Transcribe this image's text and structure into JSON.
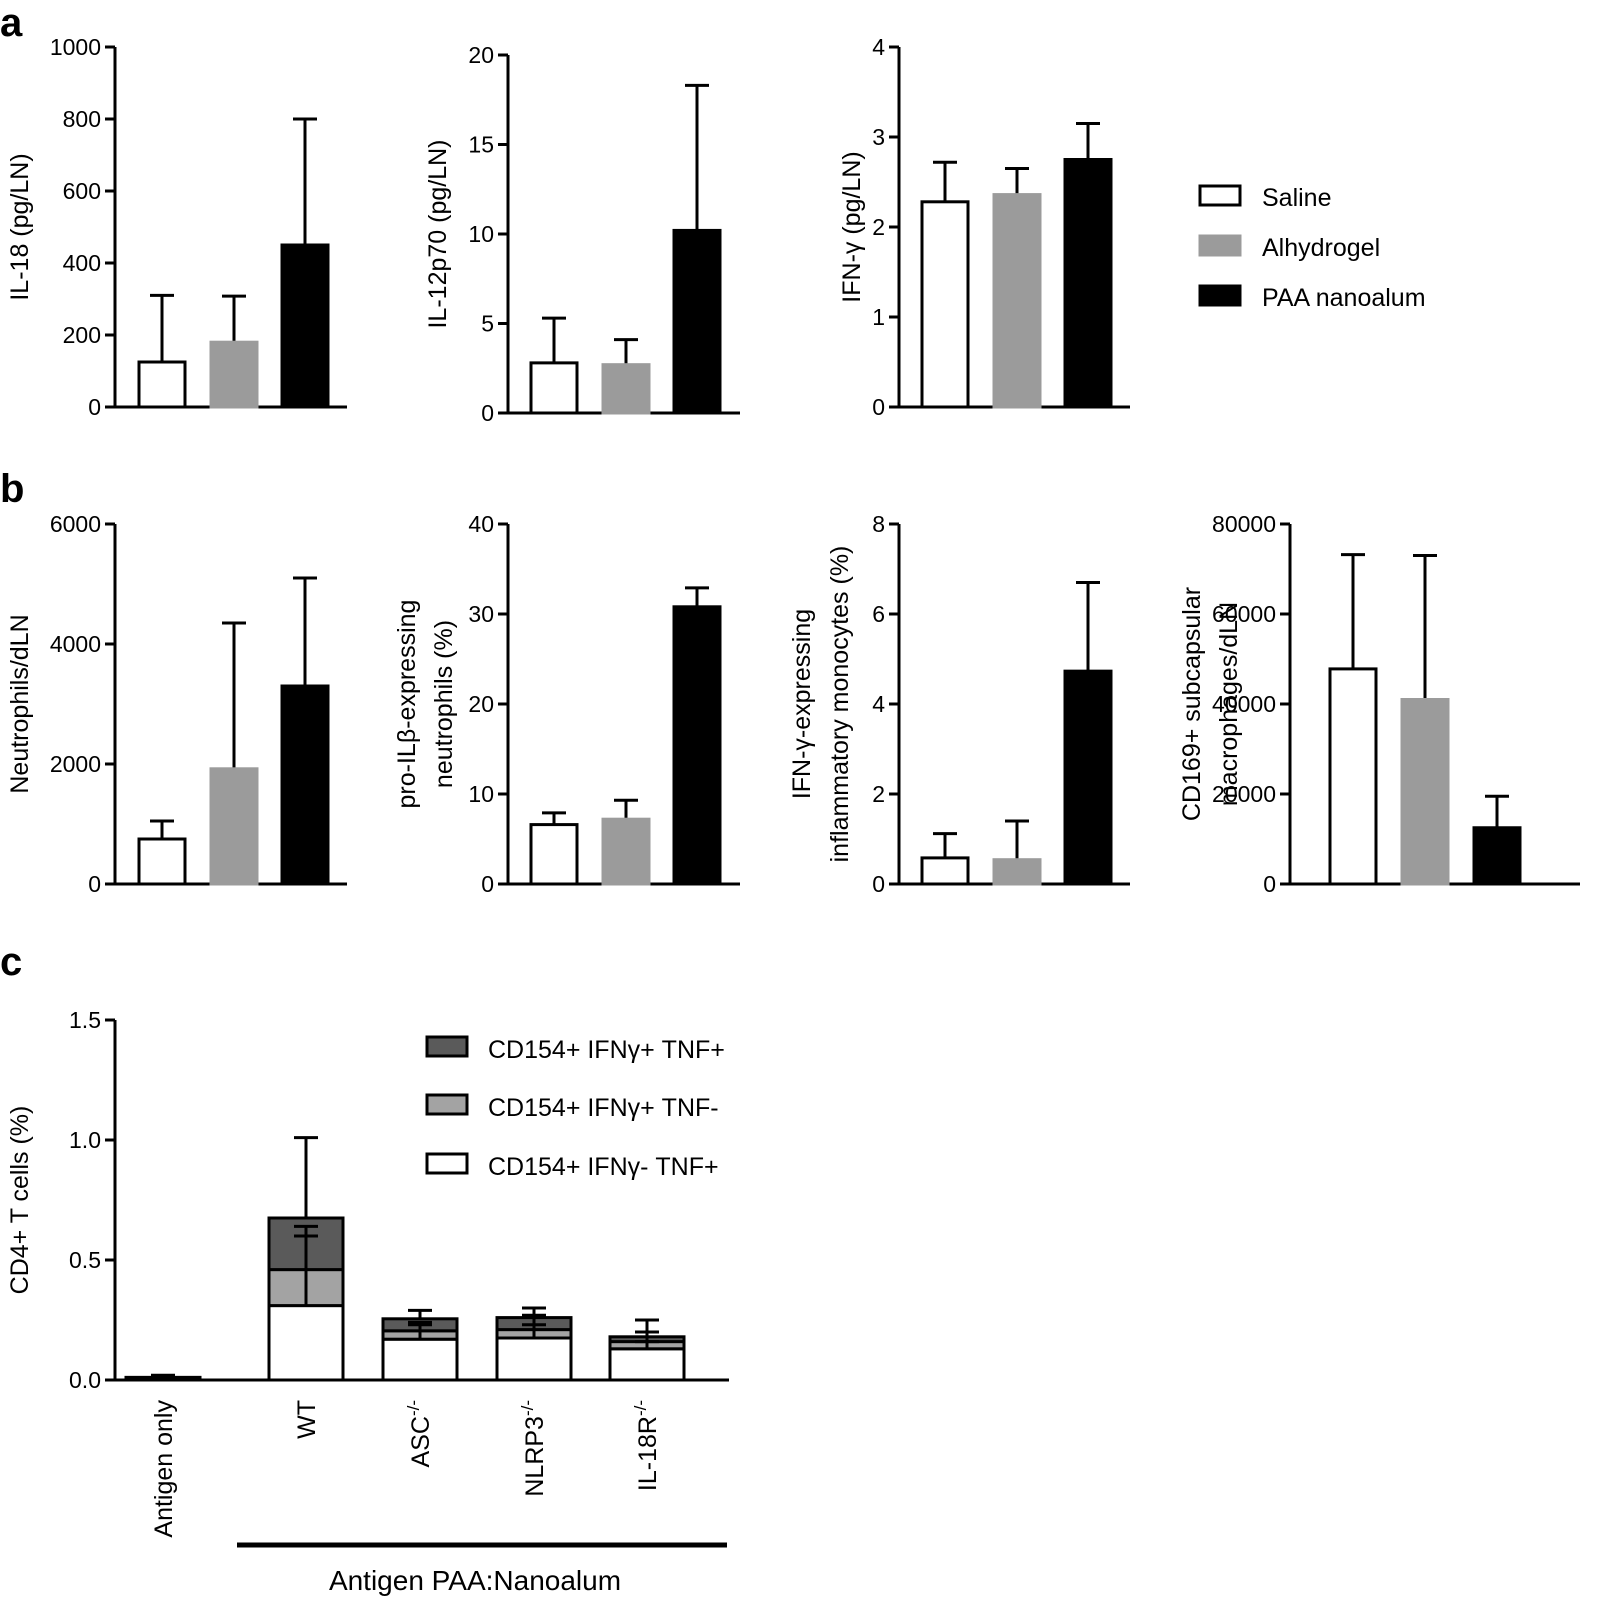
{
  "panels": {
    "a": "a",
    "b": "b",
    "c": "c"
  },
  "colors": {
    "saline": "#ffffff",
    "alhydrogel": "#9b9b9b",
    "paa": "#000000",
    "tnf_pos_ifn_pos": "#5a5a5a",
    "ifn_pos_tnf_neg": "#a3a3a3",
    "ifn_neg_tnf_pos": "#ffffff"
  },
  "legend_ab": [
    "Saline",
    "Alhydrogel",
    "PAA nanoalum"
  ],
  "chart_data": [
    {
      "id": "a1",
      "type": "bar",
      "ylabel": "IL-18 (pg/LN)",
      "ylim": [
        0,
        1000
      ],
      "yticks": [
        "0",
        "200",
        "400",
        "600",
        "800",
        "1000"
      ],
      "categories": [
        "Saline",
        "Alhydrogel",
        "PAA nanoalum"
      ],
      "values": [
        125,
        180,
        450
      ],
      "errors": [
        310,
        308,
        800
      ]
    },
    {
      "id": "a2",
      "type": "bar",
      "ylabel": "IL-12p70 (pg/LN)",
      "ylim": [
        0,
        20
      ],
      "yticks": [
        "0",
        "5",
        "10",
        "15",
        "20"
      ],
      "categories": [
        "Saline",
        "Alhydrogel",
        "PAA nanoalum"
      ],
      "values": [
        2.8,
        2.7,
        10.2
      ],
      "errors": [
        5.3,
        4.1,
        18.3
      ]
    },
    {
      "id": "a3",
      "type": "bar",
      "ylabel": "IFN-γ (pg/LN)",
      "ylim": [
        0,
        4
      ],
      "yticks": [
        "0",
        "1",
        "2",
        "3",
        "4"
      ],
      "categories": [
        "Saline",
        "Alhydrogel",
        "PAA nanoalum"
      ],
      "values": [
        2.28,
        2.36,
        2.75
      ],
      "errors": [
        2.72,
        2.65,
        3.15
      ]
    },
    {
      "id": "b1",
      "type": "bar",
      "ylabel": "Neutrophils/dLN",
      "ylim": [
        0,
        6000
      ],
      "yticks": [
        "0",
        "2000",
        "4000",
        "6000"
      ],
      "categories": [
        "Saline",
        "Alhydrogel",
        "PAA nanoalum"
      ],
      "values": [
        750,
        1920,
        3300
      ],
      "errors": [
        1050,
        4350,
        5100
      ]
    },
    {
      "id": "b2",
      "type": "bar",
      "ylabel": [
        "pro-ILβ-expressing",
        "neutrophils  (%)"
      ],
      "ylim": [
        0,
        40
      ],
      "yticks": [
        "0",
        "10",
        "20",
        "30",
        "40"
      ],
      "categories": [
        "Saline",
        "Alhydrogel",
        "PAA nanoalum"
      ],
      "values": [
        6.6,
        7.2,
        30.8
      ],
      "errors": [
        7.9,
        9.3,
        32.9
      ]
    },
    {
      "id": "b3",
      "type": "bar",
      "ylabel": [
        "IFN-γ-expressing",
        "inflammatory monocytes  (%)"
      ],
      "ylim": [
        0,
        8
      ],
      "yticks": [
        "0",
        "2",
        "4",
        "6",
        "8"
      ],
      "categories": [
        "Saline",
        "Alhydrogel",
        "PAA nanoalum"
      ],
      "values": [
        0.58,
        0.54,
        4.73
      ],
      "errors": [
        1.12,
        1.4,
        6.7
      ]
    },
    {
      "id": "b4",
      "type": "bar",
      "ylabel": [
        "CD169+ subcapsular",
        "macrophages/dLN"
      ],
      "ylim": [
        0,
        80000
      ],
      "yticks": [
        "0",
        "20000",
        "40000",
        "60000",
        "80000"
      ],
      "categories": [
        "Saline",
        "Alhydrogel",
        "PAA nanoalum"
      ],
      "values": [
        47800,
        41000,
        12500
      ],
      "errors": [
        73200,
        73000,
        19500
      ]
    },
    {
      "id": "c",
      "type": "stacked-bar",
      "ylabel": "CD4+ T cells (%)",
      "ylim": [
        0,
        1.5
      ],
      "yticks": [
        "0.0",
        "0.5",
        "1.0",
        "1.5"
      ],
      "categories": [
        "Antigen only",
        "WT",
        "ASC",
        "NLRP3",
        "IL-18R"
      ],
      "category_superscript": [
        "",
        "",
        "-/-",
        "-/-",
        "-/-"
      ],
      "group_label": "Antigen PAA:Nanoalum",
      "legend": [
        "CD154+ IFNγ+ TNF+",
        "CD154+ IFNγ+ TNF-",
        "CD154+ IFNγ- TNF+"
      ],
      "series": [
        {
          "name": "CD154+ IFNγ- TNF+",
          "values": [
            0.005,
            0.31,
            0.17,
            0.175,
            0.13
          ],
          "errors": [
            0.008,
            0.6,
            0.24,
            0.23,
            0.16
          ]
        },
        {
          "name": "CD154+ IFNγ+ TNF-",
          "values": [
            0.003,
            0.15,
            0.035,
            0.035,
            0.03
          ],
          "errors": [
            0.005,
            0.64,
            0.23,
            0.27,
            0.2
          ]
        },
        {
          "name": "CD154+ IFNγ+ TNF+",
          "values": [
            0.003,
            0.215,
            0.05,
            0.05,
            0.02
          ],
          "errors": [
            0.02,
            1.01,
            0.29,
            0.3,
            0.25
          ]
        }
      ]
    }
  ]
}
